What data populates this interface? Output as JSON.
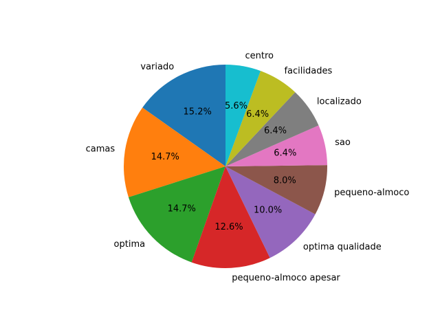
{
  "chart_data": {
    "type": "pie",
    "title": "",
    "start_angle_deg": 90,
    "direction": "counterclockwise",
    "slices": [
      {
        "label": "variado",
        "value": 15.2,
        "pct_label": "15.2%",
        "color": "#1f77b4"
      },
      {
        "label": "camas",
        "value": 14.7,
        "pct_label": "14.7%",
        "color": "#ff7f0e"
      },
      {
        "label": "optima",
        "value": 14.7,
        "pct_label": "14.7%",
        "color": "#2ca02c"
      },
      {
        "label": "pequeno-almoco apesar",
        "value": 12.6,
        "pct_label": "12.6%",
        "color": "#d62728"
      },
      {
        "label": "optima qualidade",
        "value": 10.0,
        "pct_label": "10.0%",
        "color": "#9467bd"
      },
      {
        "label": "pequeno-almoco",
        "value": 8.0,
        "pct_label": "8.0%",
        "color": "#8c564b"
      },
      {
        "label": "sao",
        "value": 6.4,
        "pct_label": "6.4%",
        "color": "#e377c2"
      },
      {
        "label": "localizado",
        "value": 6.4,
        "pct_label": "6.4%",
        "color": "#7f7f7f"
      },
      {
        "label": "facilidades",
        "value": 6.4,
        "pct_label": "6.4%",
        "color": "#bcbd22"
      },
      {
        "label": "centro",
        "value": 5.6,
        "pct_label": "5.6%",
        "color": "#17becf"
      }
    ]
  }
}
